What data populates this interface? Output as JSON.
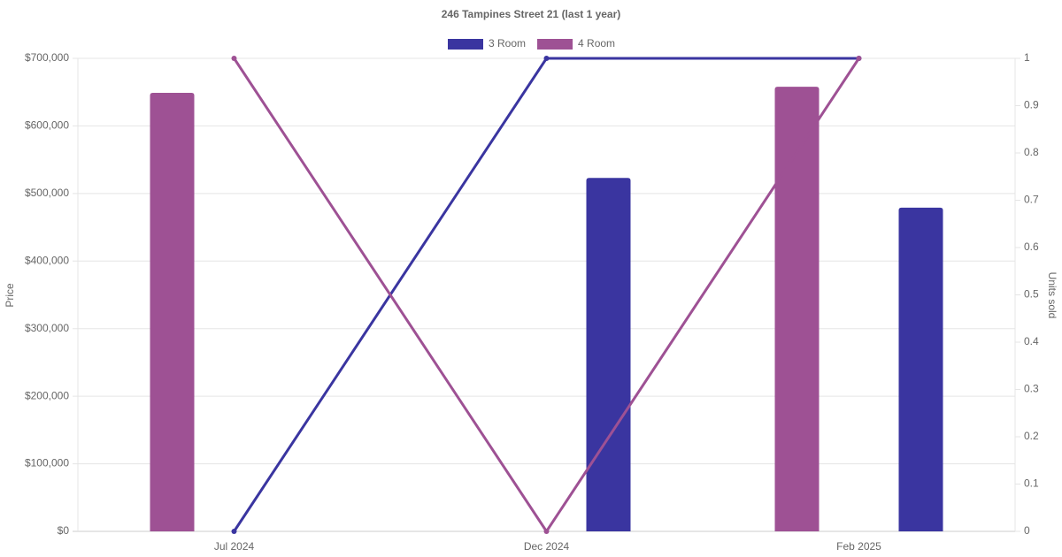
{
  "chart_data": {
    "type": "bar-line",
    "title": "246 Tampines Street 21 (last 1 year)",
    "y_label": "Price",
    "y2_label": "Units sold",
    "categories": [
      "Jul 2024",
      "Dec 2024",
      "Feb 2025"
    ],
    "series": [
      {
        "name": "3 Room",
        "color": "#3a35a0",
        "values": [
          null,
          523000,
          479000
        ],
        "units": [
          0,
          1,
          1
        ],
        "units_axis": "y2"
      },
      {
        "name": "4 Room",
        "color": "#9e5194",
        "values": [
          649000,
          null,
          658000
        ],
        "units": [
          1,
          0,
          1
        ],
        "units_axis": "y2"
      }
    ],
    "ylim": [
      0,
      700000
    ],
    "yticks": [
      {
        "value": 0,
        "label": "$0"
      },
      {
        "value": 100000,
        "label": "$100,000"
      },
      {
        "value": 200000,
        "label": "$200,000"
      },
      {
        "value": 300000,
        "label": "$300,000"
      },
      {
        "value": 400000,
        "label": "$400,000"
      },
      {
        "value": 500000,
        "label": "$500,000"
      },
      {
        "value": 600000,
        "label": "$600,000"
      },
      {
        "value": 700000,
        "label": "$700,000"
      }
    ],
    "y2lim": [
      0,
      1
    ],
    "y2ticks": [
      0,
      0.1,
      0.2,
      0.3,
      0.4,
      0.5,
      0.6,
      0.7,
      0.8,
      0.9,
      1
    ],
    "grid": true,
    "legend": "top"
  }
}
